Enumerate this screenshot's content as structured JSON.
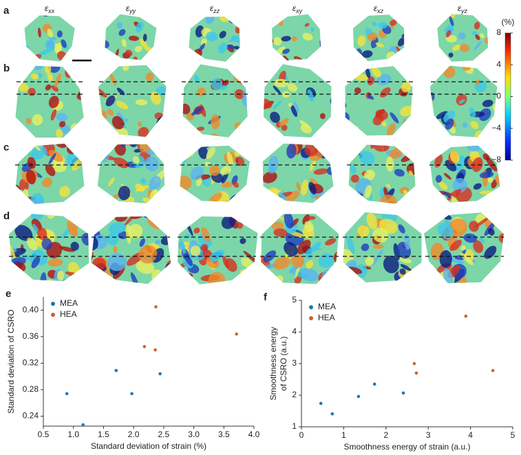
{
  "maps": {
    "rows": [
      "a",
      "b",
      "c",
      "d"
    ],
    "symbol": "ε",
    "columns": [
      "xx",
      "yy",
      "zz",
      "xy",
      "xz",
      "yz"
    ],
    "colorbar": {
      "unit": "(%)",
      "lim": [
        -8,
        8
      ],
      "ticks": [
        8,
        4,
        0,
        {
          "value": -4,
          "label": "−4"
        },
        {
          "value": -8,
          "label": "−8"
        }
      ]
    }
  },
  "chart_data": [
    {
      "type": "scatter",
      "panel": "e",
      "xlabel": "Standard deviation of strain (%)",
      "ylabel": "Standard deviation of CSRO",
      "xlim": [
        0.5,
        4.0
      ],
      "xticks": [
        0.5,
        {
          "value": 1,
          "label": "1.0"
        },
        1.5,
        {
          "value": 2,
          "label": "2.0"
        },
        2.5,
        {
          "value": 3,
          "label": "3.0"
        },
        3.5,
        {
          "value": 4,
          "label": "4.0"
        }
      ],
      "ylim": [
        0.225,
        0.42
      ],
      "yticks": [
        0.24,
        0.28,
        0.32,
        0.36,
        {
          "value": 0.4,
          "label": "0.40"
        }
      ],
      "legend": "upper left",
      "series": [
        {
          "name": "MEA",
          "color": "#1f77b4",
          "x": [
            0.89,
            1.16,
            1.71,
            1.97,
            2.44
          ],
          "values": [
            0.274,
            0.227,
            0.309,
            0.274,
            0.304
          ]
        },
        {
          "name": "HEA",
          "color": "#d2602a",
          "x": [
            2.37,
            2.18,
            2.36,
            3.71
          ],
          "values": [
            0.405,
            0.345,
            0.34,
            0.364
          ]
        }
      ]
    },
    {
      "type": "scatter",
      "panel": "f",
      "xlabel": "Smoothness energy of strain (a.u.)",
      "ylabel": [
        "Smoothness energy",
        "of CSRO (a.u.)"
      ],
      "xlim": [
        0,
        5
      ],
      "xticks": [
        0,
        1,
        2,
        3,
        4,
        5
      ],
      "ylim": [
        1,
        5
      ],
      "yticks": [
        1,
        2,
        3,
        4,
        5
      ],
      "legend": "upper left",
      "series": [
        {
          "name": "MEA",
          "color": "#1f77b4",
          "x": [
            0.46,
            0.73,
            1.35,
            1.73,
            2.41
          ],
          "values": [
            1.74,
            1.41,
            1.96,
            2.35,
            2.07
          ]
        },
        {
          "name": "HEA",
          "color": "#d2602a",
          "x": [
            2.67,
            2.72,
            3.89,
            4.53
          ],
          "values": [
            3.0,
            2.7,
            4.5,
            2.78
          ]
        }
      ]
    }
  ]
}
